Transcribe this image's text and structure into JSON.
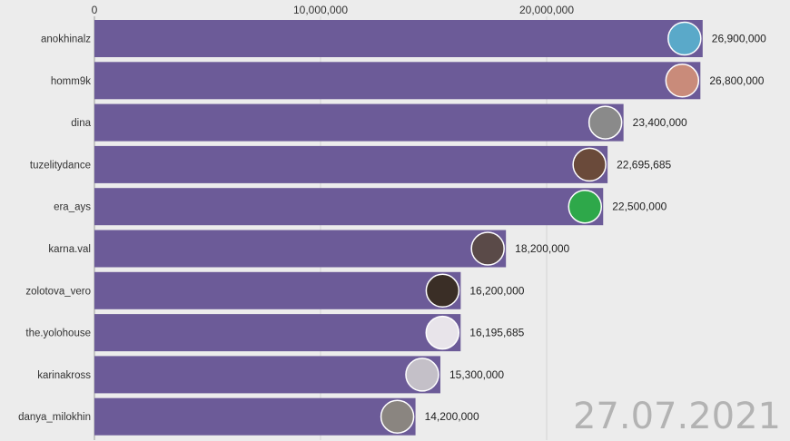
{
  "chart_data": {
    "type": "bar",
    "orientation": "horizontal",
    "categories": [
      "anokhinalz",
      "homm9k",
      "dina",
      "tuzelitydance",
      "era_ays",
      "karna.val",
      "zolotova_vero",
      "the.yolohouse",
      "karinakross",
      "danya_milokhin"
    ],
    "values": [
      26900000,
      26800000,
      23400000,
      22695685,
      22500000,
      18200000,
      16200000,
      16195685,
      15300000,
      14200000
    ],
    "value_labels": [
      "26,900,000",
      "26,800,000",
      "23,400,000",
      "22,695,685",
      "22,500,000",
      "18,200,000",
      "16,200,000",
      "16,195,685",
      "15,300,000",
      "14,200,000"
    ],
    "x_ticks": [
      0,
      10000000,
      20000000
    ],
    "x_tick_labels": [
      "0",
      "10,000,000",
      "20,000,000"
    ],
    "xlim": [
      0,
      34000000
    ],
    "axis_position": "top",
    "grid": true,
    "bar_color": "#6c5b98",
    "avatar_colors": [
      "#5aa9c9",
      "#c98b7a",
      "#8a8a8a",
      "#6a4a3a",
      "#2ea84a",
      "#5a4a48",
      "#3a2e26",
      "#e8e4ea",
      "#c4c0c8",
      "#8a8580"
    ],
    "title": ""
  },
  "date_label": "27.07.2021"
}
